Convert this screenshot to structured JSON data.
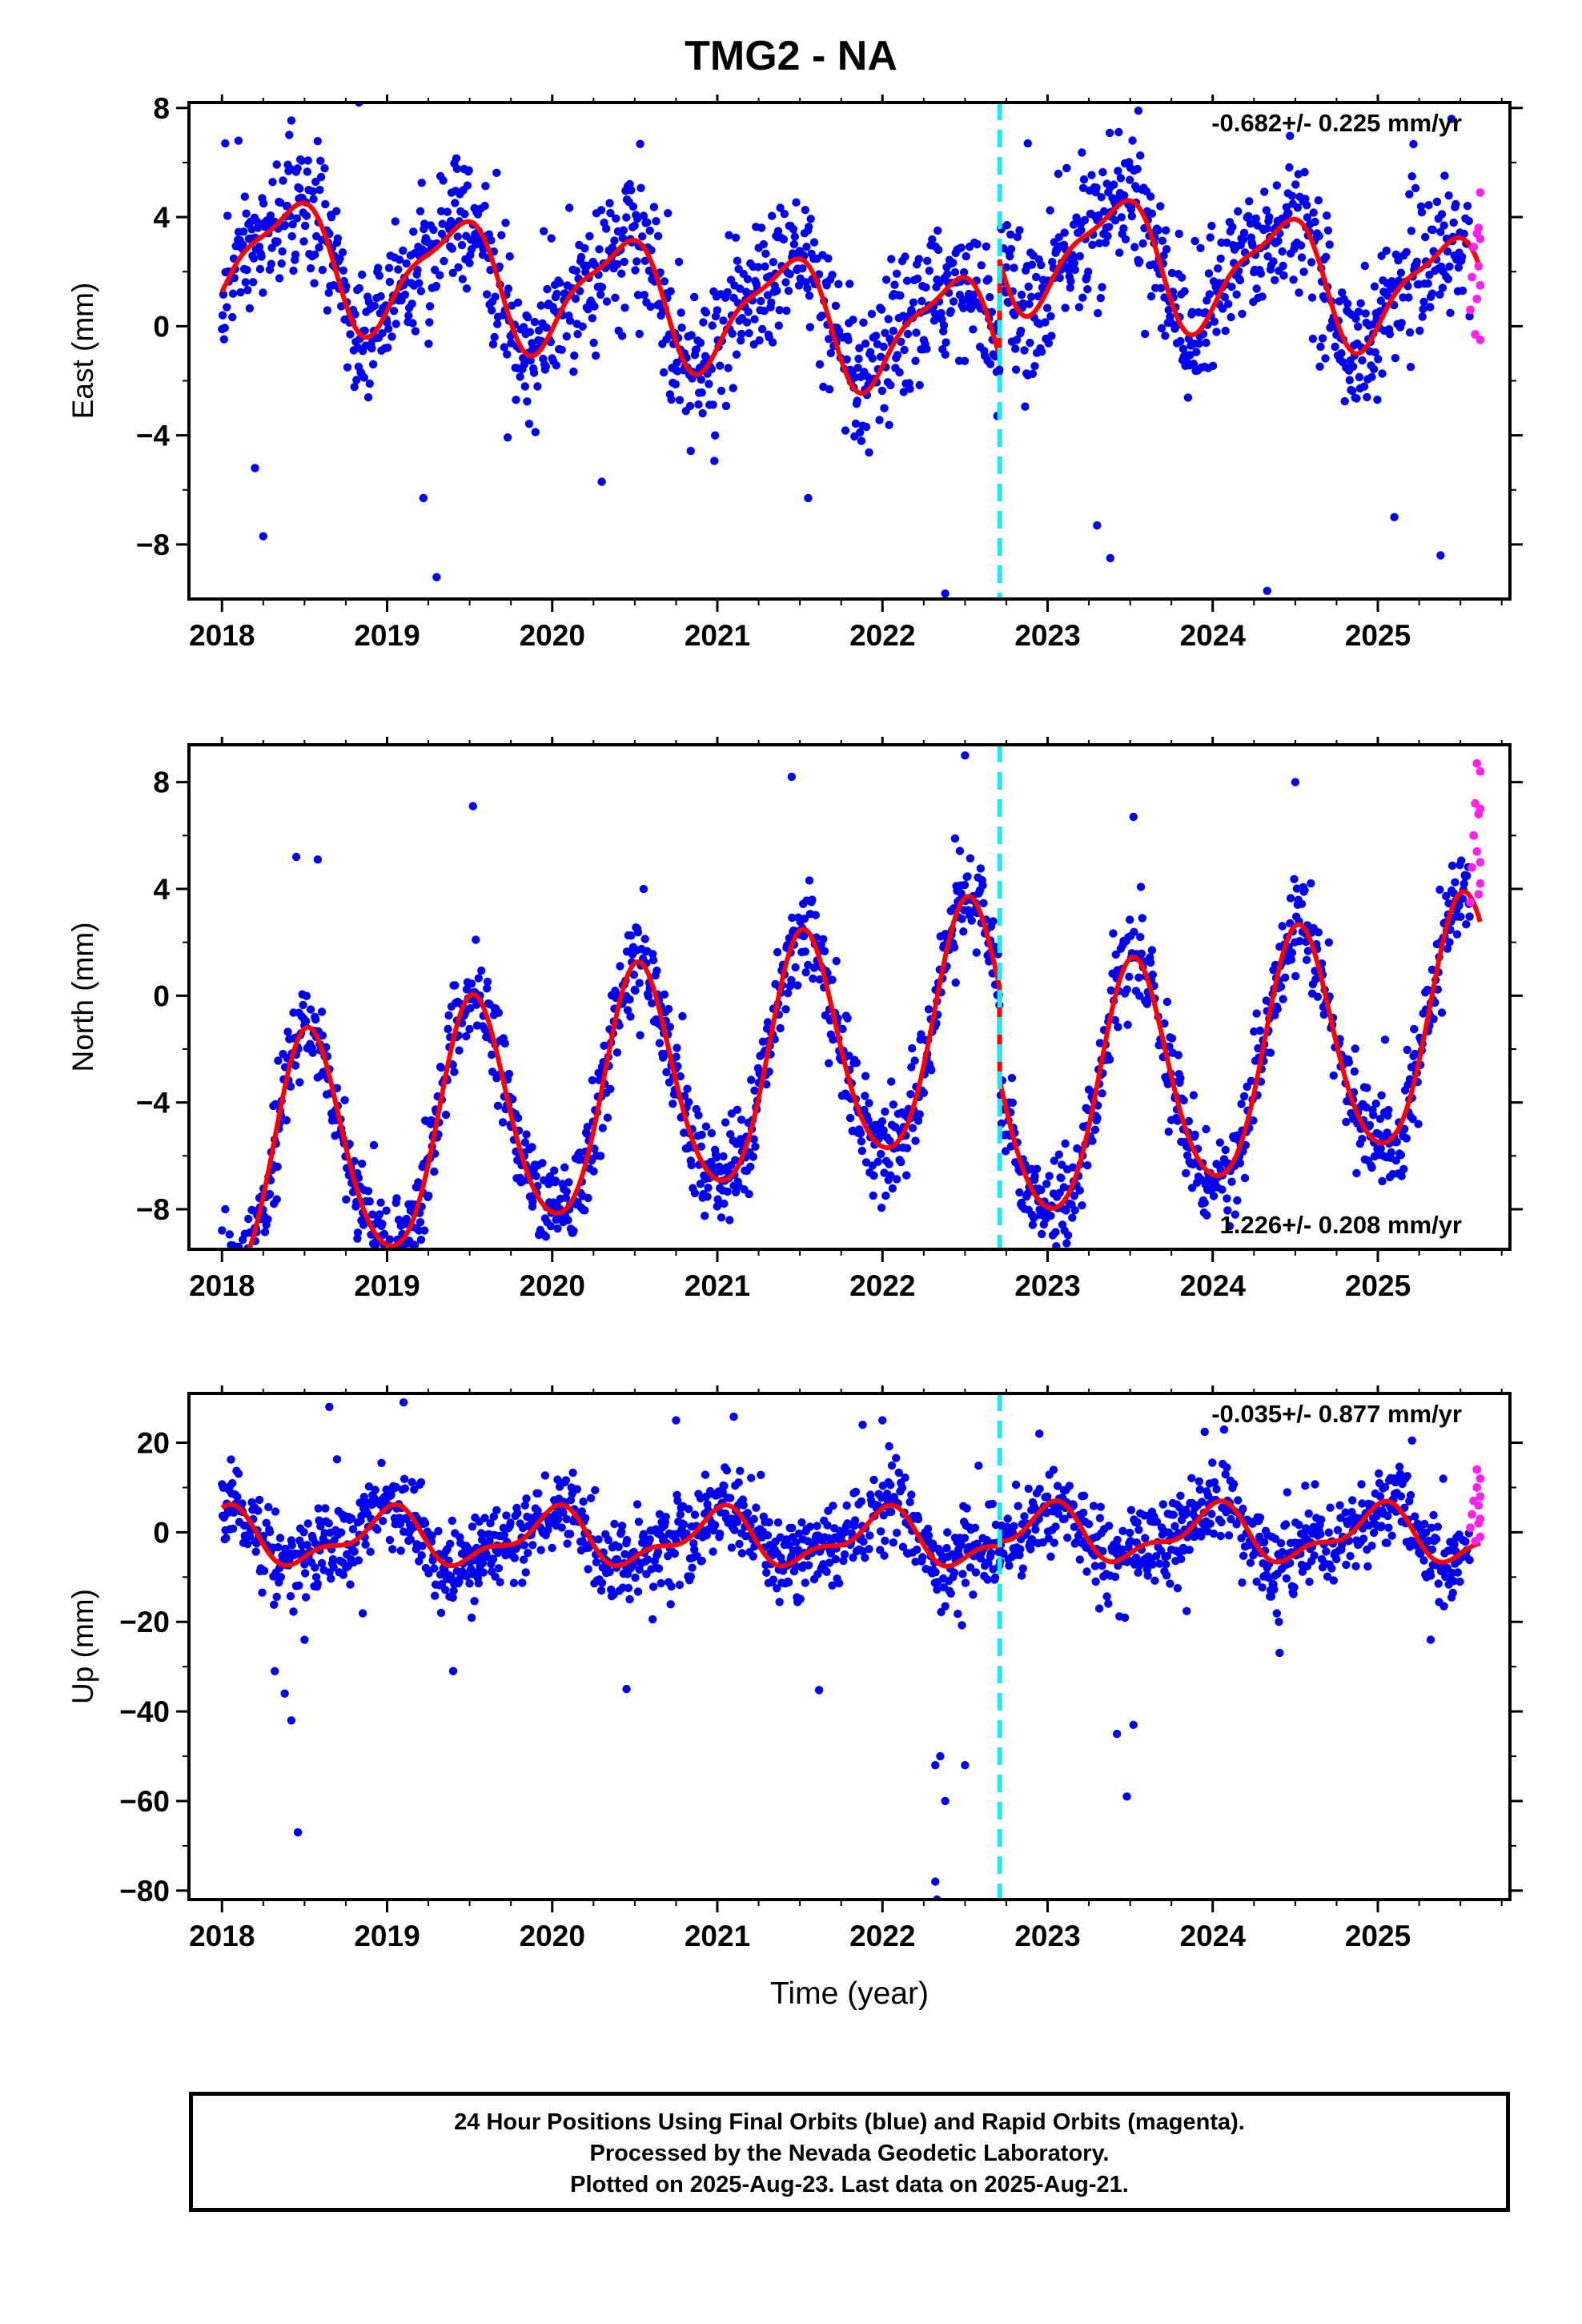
{
  "title": "TMG2 - NA",
  "colors": {
    "final_orbits": "#0000ee",
    "rapid_orbits": "#ff22ee",
    "model": "#ff0000",
    "equipment_change": "#22e6ee"
  },
  "footer": {
    "line1": "24 Hour Positions Using Final Orbits (blue) and Rapid Orbits (magenta).",
    "line2": "Processed by the Nevada Geodetic Laboratory.",
    "line3": "Plotted on 2025-Aug-23. Last data on 2025-Aug-21."
  },
  "chart_data": [
    {
      "type": "scatter",
      "ylabel": "East (mm)",
      "xlabel": "",
      "xlim": [
        2017.8,
        2025.8
      ],
      "ylim": [
        -10,
        8.2
      ],
      "xticks": [
        "2018",
        "2019",
        "2020",
        "2021",
        "2022",
        "2023",
        "2024",
        "2025"
      ],
      "yticks": [
        "8",
        "4",
        "0",
        "-4",
        "-8"
      ],
      "annotation": "-0.682+/- 0.225 mm/yr",
      "annotation_position": "top-right",
      "equipment_change_year": 2022.71,
      "model": {
        "offset": 0.0,
        "trend": -0.682,
        "annual_amp": 2.1,
        "annual_phase": 2.6,
        "semi_amp": 0.6,
        "semi_phase": 1.0,
        "step_at": 2022.71,
        "step": 3.5,
        "x_start": 2018.0,
        "x_end": 2025.62
      },
      "noise_sd": 1.25,
      "outliers": [
        [
          2018.02,
          6.7
        ],
        [
          2018.1,
          6.8
        ],
        [
          2018.2,
          -5.2
        ],
        [
          2018.25,
          -7.7
        ],
        [
          2018.83,
          8.2
        ],
        [
          2019.22,
          -6.3
        ],
        [
          2019.3,
          -9.2
        ],
        [
          2020.3,
          -5.7
        ],
        [
          2021.55,
          -6.3
        ],
        [
          2022.38,
          -9.8
        ],
        [
          2022.88,
          6.7
        ],
        [
          2023.3,
          -7.3
        ],
        [
          2023.38,
          -8.5
        ],
        [
          2023.55,
          7.9
        ],
        [
          2024.33,
          -9.7
        ],
        [
          2025.1,
          -7.0
        ],
        [
          2025.38,
          -8.4
        ]
      ],
      "rapid_points": [
        [
          2025.56,
          0.6
        ],
        [
          2025.57,
          1.8
        ],
        [
          2025.58,
          2.9
        ],
        [
          2025.59,
          -0.3
        ],
        [
          2025.6,
          3.4
        ],
        [
          2025.6,
          1.0
        ],
        [
          2025.61,
          2.2
        ],
        [
          2025.61,
          3.6
        ],
        [
          2025.62,
          4.9
        ],
        [
          2025.62,
          1.5
        ],
        [
          2025.62,
          -0.5
        ],
        [
          2025.62,
          3.2
        ]
      ]
    },
    {
      "type": "scatter",
      "ylabel": "North (mm)",
      "xlabel": "",
      "xlim": [
        2017.8,
        2025.8
      ],
      "ylim": [
        -9.5,
        9.4
      ],
      "xticks": [
        "2018",
        "2019",
        "2020",
        "2021",
        "2022",
        "2023",
        "2024",
        "2025"
      ],
      "yticks": [
        "8",
        "4",
        "0",
        "-4",
        "-8"
      ],
      "annotation": "1.226+/- 0.208 mm/yr",
      "annotation_position": "bottom-right",
      "equipment_change_year": 2022.71,
      "model": {
        "offset": -1.8,
        "trend": 1.226,
        "annual_amp": 4.4,
        "annual_phase": -3.0,
        "semi_amp": 0.5,
        "semi_phase": 0.0,
        "step_at": 2022.71,
        "step": -3.5,
        "x_start": 2018.0,
        "x_end": 2025.62
      },
      "noise_sd": 0.9,
      "outliers": [
        [
          2018.02,
          -8.0
        ],
        [
          2018.2,
          -8.7
        ],
        [
          2018.45,
          5.2
        ],
        [
          2018.58,
          5.1
        ],
        [
          2018.82,
          -9.1
        ],
        [
          2019.52,
          7.1
        ],
        [
          2019.88,
          -7.9
        ],
        [
          2021.45,
          8.2
        ],
        [
          2022.5,
          9.0
        ],
        [
          2022.92,
          -6.9
        ],
        [
          2023.52,
          6.7
        ],
        [
          2024.5,
          8.0
        ],
        [
          2024.85,
          -3.9
        ]
      ],
      "rapid_points": [
        [
          2025.56,
          3.5
        ],
        [
          2025.57,
          4.8
        ],
        [
          2025.58,
          6.0
        ],
        [
          2025.59,
          7.2
        ],
        [
          2025.6,
          8.7
        ],
        [
          2025.6,
          5.4
        ],
        [
          2025.61,
          3.8
        ],
        [
          2025.61,
          6.8
        ],
        [
          2025.62,
          8.4
        ],
        [
          2025.62,
          4.2
        ],
        [
          2025.62,
          7.0
        ],
        [
          2025.62,
          5.0
        ]
      ]
    },
    {
      "type": "scatter",
      "ylabel": "Up (mm)",
      "xlabel": "Time (year)",
      "xlim": [
        2017.8,
        2025.8
      ],
      "ylim": [
        -82,
        31
      ],
      "xticks": [
        "2018",
        "2019",
        "2020",
        "2021",
        "2022",
        "2023",
        "2024",
        "2025"
      ],
      "yticks": [
        "20",
        "0",
        "-20",
        "-40",
        "-60",
        "-80"
      ],
      "annotation": "-0.035+/- 0.877 mm/yr",
      "annotation_position": "top-right",
      "equipment_change_year": 2022.71,
      "model": {
        "offset": -1.5,
        "trend": -0.035,
        "annual_amp": 5.5,
        "annual_phase": 0.0,
        "semi_amp": 2.5,
        "semi_phase": 1.0,
        "step_at": 2022.71,
        "step": 1.0,
        "x_start": 2018.0,
        "x_end": 2025.62
      },
      "noise_sd": 4.5,
      "outliers": [
        [
          2018.32,
          -31
        ],
        [
          2018.38,
          -36
        ],
        [
          2018.42,
          -42
        ],
        [
          2018.5,
          -24
        ],
        [
          2018.46,
          -67
        ],
        [
          2018.65,
          28
        ],
        [
          2019.1,
          29
        ],
        [
          2019.4,
          -31
        ],
        [
          2020.45,
          -35
        ],
        [
          2020.75,
          25
        ],
        [
          2021.88,
          24
        ],
        [
          2022.0,
          25
        ],
        [
          2022.32,
          -52
        ],
        [
          2022.35,
          -50
        ],
        [
          2022.38,
          -60
        ],
        [
          2022.32,
          -78
        ],
        [
          2022.33,
          -82
        ],
        [
          2022.5,
          -52
        ],
        [
          2022.95,
          22
        ],
        [
          2023.42,
          -45
        ],
        [
          2023.52,
          -43
        ],
        [
          2023.48,
          -59
        ],
        [
          2025.32,
          -24
        ]
      ],
      "rapid_points": [
        [
          2025.56,
          1
        ],
        [
          2025.57,
          4
        ],
        [
          2025.58,
          7
        ],
        [
          2025.59,
          -2
        ],
        [
          2025.6,
          10
        ],
        [
          2025.6,
          14
        ],
        [
          2025.61,
          2
        ],
        [
          2025.61,
          6
        ],
        [
          2025.62,
          12
        ],
        [
          2025.62,
          -1
        ],
        [
          2025.62,
          8
        ],
        [
          2025.62,
          3
        ]
      ]
    }
  ]
}
